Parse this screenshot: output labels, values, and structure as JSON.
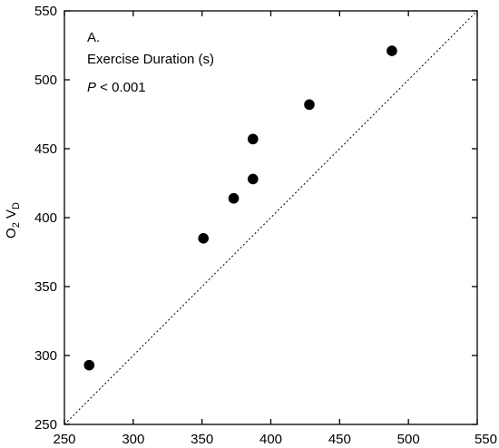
{
  "chart_data": {
    "type": "scatter",
    "title": "",
    "xlabel": "",
    "ylabel_main": "O",
    "ylabel_sub1": "2",
    "ylabel_mid": " V",
    "ylabel_sub2": "D",
    "xlim": [
      250,
      550
    ],
    "ylim": [
      250,
      550
    ],
    "xticks": [
      250,
      300,
      350,
      400,
      450,
      500,
      550
    ],
    "yticks": [
      250,
      300,
      350,
      400,
      450,
      500,
      550
    ],
    "grid": false,
    "identity_line": true,
    "annotations": {
      "panel": "A.",
      "measure": "Exercise Duration (s)",
      "p_symbol": "P",
      "p_value": " < 0.001"
    },
    "points": [
      {
        "x": 268,
        "y": 293
      },
      {
        "x": 351,
        "y": 385
      },
      {
        "x": 373,
        "y": 414
      },
      {
        "x": 387,
        "y": 428
      },
      {
        "x": 387,
        "y": 457
      },
      {
        "x": 428,
        "y": 482
      },
      {
        "x": 488,
        "y": 521
      }
    ]
  }
}
